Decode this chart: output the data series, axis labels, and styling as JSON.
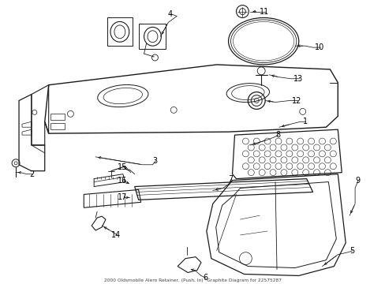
{
  "title": "2000 Oldsmobile Alero Retainer, (Push, In) *Graphite Diagram for 22575287",
  "background_color": "#ffffff",
  "fig_width": 4.89,
  "fig_height": 3.6,
  "dpi": 100,
  "line_color": "#1a1a1a",
  "text_color": "#000000",
  "label_fontsize": 7.0
}
